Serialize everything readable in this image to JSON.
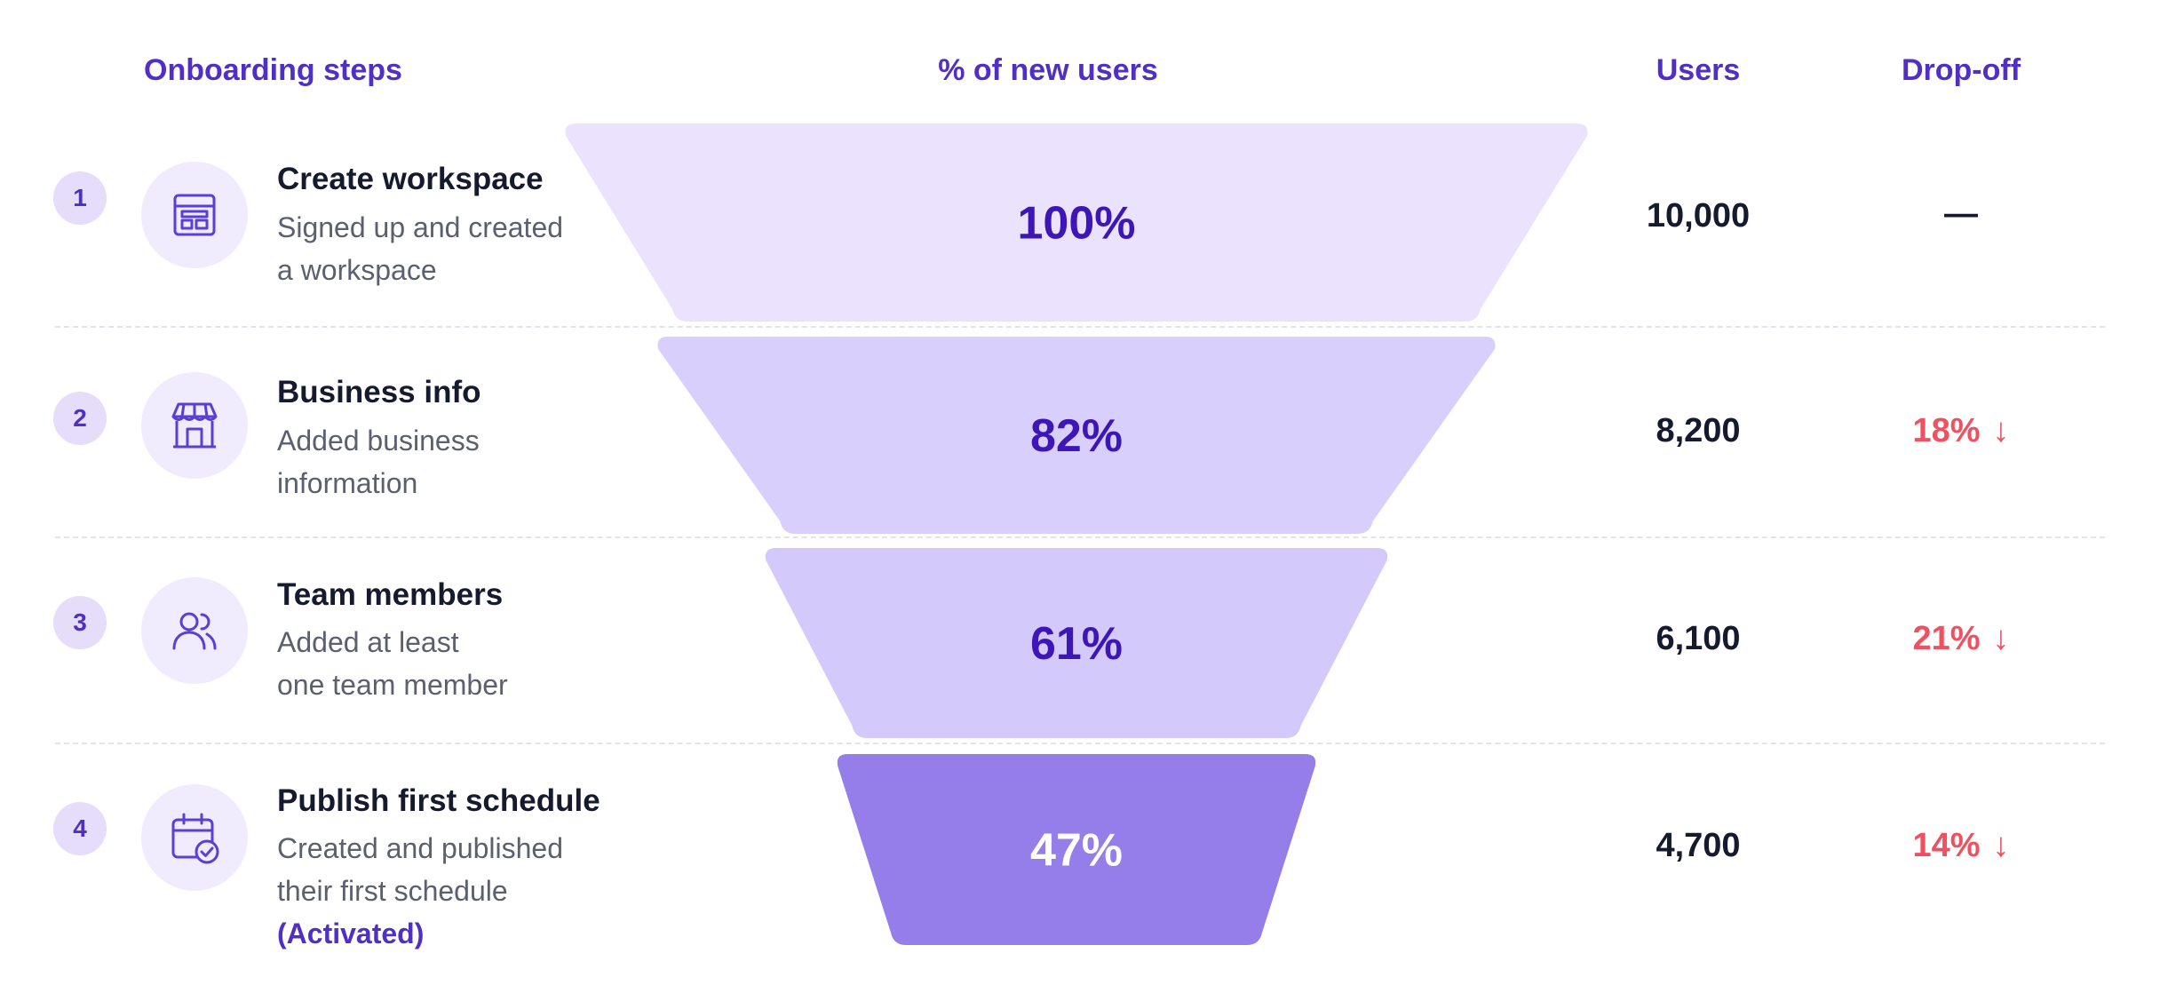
{
  "headers": {
    "steps": "Onboarding steps",
    "pct": "% of new users",
    "users": "Users",
    "dropoff": "Drop-off"
  },
  "steps": [
    {
      "number": "1",
      "icon": "workspace-icon",
      "title": "Create workspace",
      "desc": [
        "Signed up and created",
        "a workspace"
      ],
      "users": "10,000",
      "dropoff": "—"
    },
    {
      "number": "2",
      "icon": "storefront-icon",
      "title": "Business info",
      "desc": [
        "Added business",
        "information"
      ],
      "users": "8,200",
      "dropoff": "18%"
    },
    {
      "number": "3",
      "icon": "users-icon",
      "title": "Team members",
      "desc": [
        "Added at least",
        "one team member"
      ],
      "users": "6,100",
      "dropoff": "21%"
    },
    {
      "number": "4",
      "icon": "calendar-check-icon",
      "title": "Publish first schedule",
      "desc": [
        "Created and published",
        "their first schedule"
      ],
      "note": "(Activated)",
      "users": "4,700",
      "dropoff": "14%"
    }
  ],
  "chart_data": {
    "type": "funnel",
    "categories": [
      "Create workspace",
      "Business info",
      "Team members",
      "Publish first schedule"
    ],
    "values": [
      100,
      82,
      61,
      47
    ],
    "value_labels": [
      "100%",
      "82%",
      "61%",
      "47%"
    ],
    "users": [
      10000,
      8200,
      6100,
      4700
    ],
    "dropoff_pct": [
      null,
      18,
      21,
      14
    ],
    "colors": [
      "#ebe3fd",
      "#d9cffc",
      "#d4c9fb",
      "#957ee9"
    ],
    "label_colors": [
      "#3d16b8",
      "#3d16b8",
      "#3d16b8",
      "#ffffff"
    ],
    "dropoff_color": "#ef5160",
    "accent": "#4f2fc6"
  }
}
